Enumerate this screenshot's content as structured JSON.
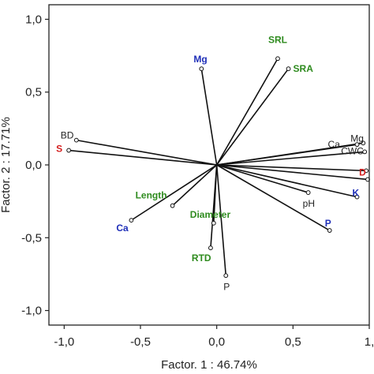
{
  "chart_data": {
    "type": "scatter",
    "subtype": "biplot-vectors",
    "xlabel": "Factor. 1 : 46.74%",
    "ylabel": "Factor. 2 : 17.71%",
    "xlim": [
      -1.1,
      1.0
    ],
    "ylim": [
      -1.1,
      1.1
    ],
    "xticks": [
      -1.0,
      -0.5,
      0.0,
      0.5,
      1.0
    ],
    "xtick_labels": [
      "-1,0",
      "-0,5",
      "0,0",
      "0,5",
      "1,"
    ],
    "yticks": [
      1.0,
      0.5,
      0.0,
      -0.5,
      -1.0
    ],
    "ytick_labels": [
      "1,0",
      "0,5",
      "0,0",
      "-0,5",
      "-1,0"
    ],
    "grid": false,
    "colors": {
      "vector": "#111111",
      "blue": "#1f2fb8",
      "green": "#2e8b1e",
      "red": "#d42020",
      "black": "#222222"
    },
    "points": [
      {
        "label": "SRL",
        "x": 0.4,
        "y": 0.73,
        "color": "green",
        "bold": true
      },
      {
        "label": "SRA",
        "x": 0.47,
        "y": 0.66,
        "color": "green",
        "bold": true
      },
      {
        "label": "Mg",
        "x": -0.1,
        "y": 0.66,
        "color": "blue",
        "bold": true
      },
      {
        "label": "BD",
        "x": -0.92,
        "y": 0.17,
        "color": "black",
        "bold": false
      },
      {
        "label": "S",
        "x": -0.97,
        "y": 0.1,
        "color": "red",
        "bold": true
      },
      {
        "label": "Ca",
        "x": 0.92,
        "y": 0.14,
        "color": "black",
        "bold": false
      },
      {
        "label": "Mg",
        "x": 0.96,
        "y": 0.15,
        "color": "black",
        "bold": false
      },
      {
        "label": "CWC",
        "x": 0.97,
        "y": 0.09,
        "color": "black",
        "bold": false
      },
      {
        "label": "D",
        "x": 0.98,
        "y": -0.04,
        "color": "red",
        "bold": true
      },
      {
        "label": "K",
        "x": 0.92,
        "y": -0.22,
        "color": "blue",
        "bold": true
      },
      {
        "label": "pH",
        "x": 0.6,
        "y": -0.19,
        "color": "black",
        "bold": false
      },
      {
        "label": "P",
        "x": 0.74,
        "y": -0.45,
        "color": "blue",
        "bold": true
      },
      {
        "label": "Length",
        "x": -0.29,
        "y": -0.28,
        "color": "green",
        "bold": true
      },
      {
        "label": "Diameter",
        "x": -0.02,
        "y": -0.4,
        "color": "green",
        "bold": true
      },
      {
        "label": "Ca",
        "x": -0.56,
        "y": -0.38,
        "color": "blue",
        "bold": true
      },
      {
        "label": "RTD",
        "x": -0.04,
        "y": -0.57,
        "color": "green",
        "bold": true
      },
      {
        "label": "P",
        "x": 0.06,
        "y": -0.76,
        "color": "black",
        "bold": false
      },
      {
        "label": "",
        "x": 0.99,
        "y": -0.1,
        "color": "black",
        "bold": false
      }
    ]
  }
}
